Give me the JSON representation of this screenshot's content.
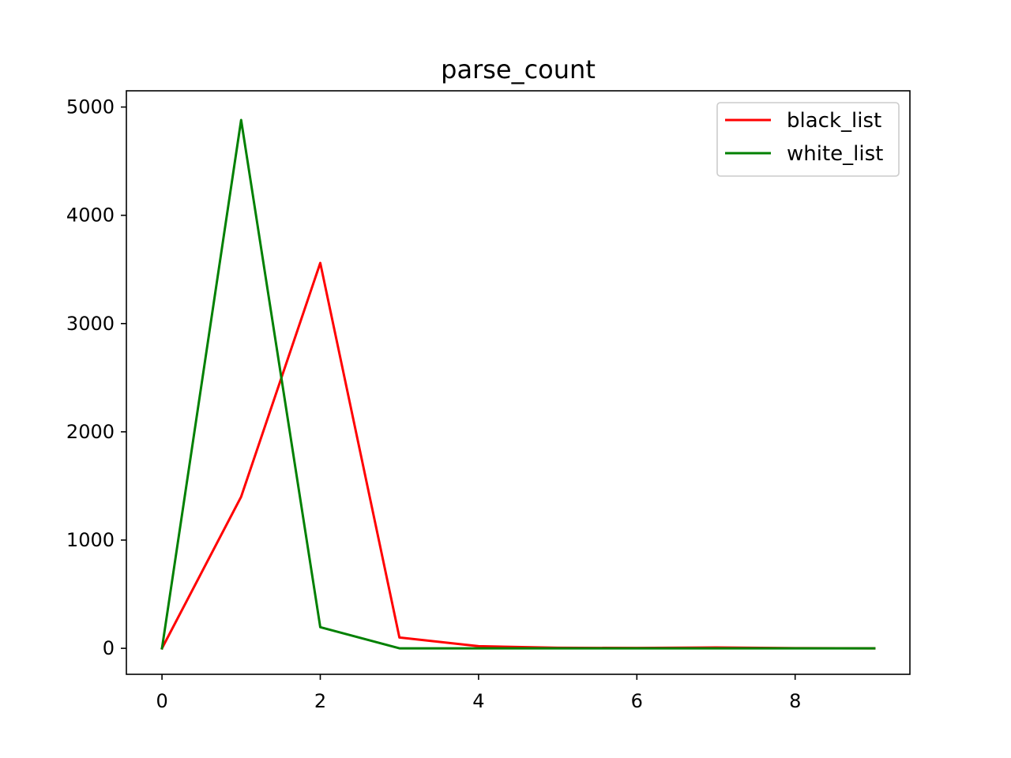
{
  "chart_data": {
    "type": "line",
    "title": "parse_count",
    "xlabel": "",
    "ylabel": "",
    "xlim": [
      -0.45,
      9.45
    ],
    "ylim": [
      -240,
      5150
    ],
    "x_ticks": [
      0,
      2,
      4,
      6,
      8
    ],
    "y_ticks": [
      0,
      1000,
      2000,
      3000,
      4000,
      5000
    ],
    "grid": false,
    "legend_position": "top-right",
    "x": [
      0,
      1,
      2,
      3,
      4,
      5,
      6,
      7,
      8,
      9
    ],
    "series": [
      {
        "name": "black_list",
        "color": "#ff0000",
        "values": [
          0,
          1400,
          3560,
          100,
          20,
          5,
          3,
          8,
          2,
          0
        ]
      },
      {
        "name": "white_list",
        "color": "#008000",
        "values": [
          0,
          4880,
          195,
          0,
          0,
          0,
          0,
          0,
          0,
          0
        ]
      }
    ]
  }
}
